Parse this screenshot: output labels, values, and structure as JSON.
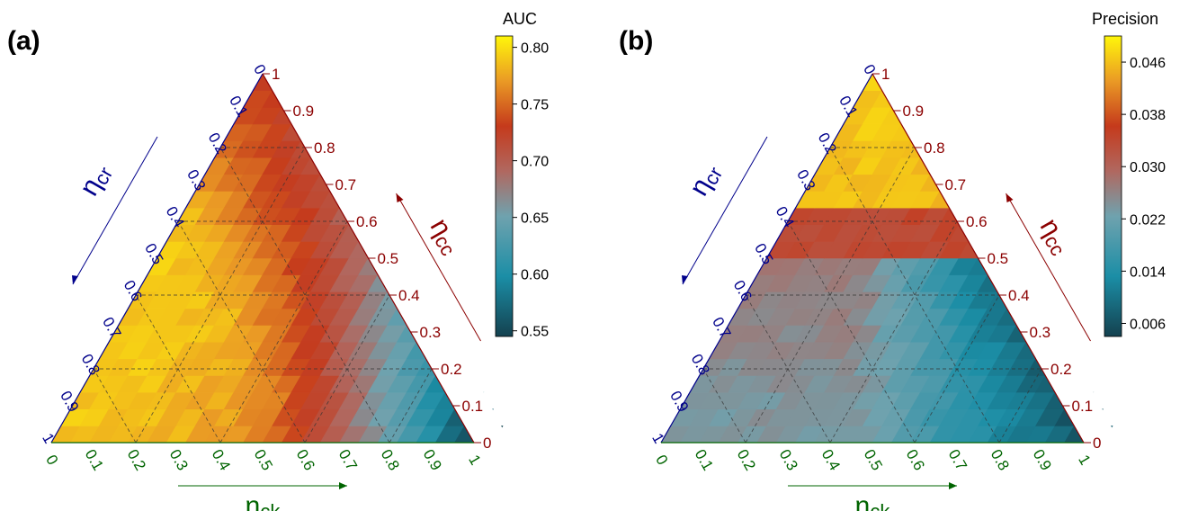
{
  "chart_data": [
    {
      "type": "heatmap",
      "panel": "(a)",
      "subtype": "ternary",
      "colorbar": {
        "title": "AUC",
        "ticks": [
          "0.80",
          "0.75",
          "0.70",
          "0.65",
          "0.60",
          "0.55"
        ],
        "range": [
          0.545,
          0.81
        ]
      },
      "axes": {
        "left": {
          "label": "η",
          "sub": "cr",
          "ticks": [
            "0",
            "0.1",
            "0.2",
            "0.3",
            "0.4",
            "0.5",
            "0.6",
            "0.7",
            "0.8",
            "0.9",
            "1"
          ]
        },
        "right": {
          "label": "η",
          "sub": "cc",
          "ticks": [
            "0",
            "0.1",
            "0.2",
            "0.3",
            "0.4",
            "0.5",
            "0.6",
            "0.7",
            "0.8",
            "0.9",
            "1"
          ]
        },
        "bottom": {
          "label": "η",
          "sub": "ck",
          "ticks": [
            "0",
            "0.1",
            "0.2",
            "0.3",
            "0.4",
            "0.5",
            "0.6",
            "0.7",
            "0.8",
            "0.9",
            "1"
          ]
        }
      },
      "field": {
        "peak": 0.79,
        "ridge": 0.72,
        "corner_cc": 0.73,
        "corner_ck": 0.66,
        "ck_fall": 0.7
      }
    },
    {
      "type": "heatmap",
      "panel": "(b)",
      "subtype": "ternary",
      "colorbar": {
        "title": "Precision",
        "ticks": [
          "0.046",
          "0.038",
          "0.030",
          "0.022",
          "0.014",
          "0.006"
        ],
        "range": [
          0.004,
          0.05
        ]
      },
      "axes": {
        "left": {
          "label": "η",
          "sub": "cr",
          "ticks": [
            "0",
            "0.1",
            "0.2",
            "0.3",
            "0.4",
            "0.5",
            "0.6",
            "0.7",
            "0.8",
            "0.9",
            "1"
          ]
        },
        "right": {
          "label": "η",
          "sub": "cc",
          "ticks": [
            "0",
            "0.1",
            "0.2",
            "0.3",
            "0.4",
            "0.5",
            "0.6",
            "0.7",
            "0.8",
            "0.9",
            "1"
          ]
        },
        "bottom": {
          "label": "η",
          "sub": "ck",
          "ticks": [
            "0",
            "0.1",
            "0.2",
            "0.3",
            "0.4",
            "0.5",
            "0.6",
            "0.7",
            "0.8",
            "0.9",
            "1"
          ]
        }
      },
      "field": {
        "top": 0.047,
        "band": 0.034,
        "mid": 0.027,
        "low_left": 0.021,
        "low_right": 0.01
      }
    }
  ]
}
